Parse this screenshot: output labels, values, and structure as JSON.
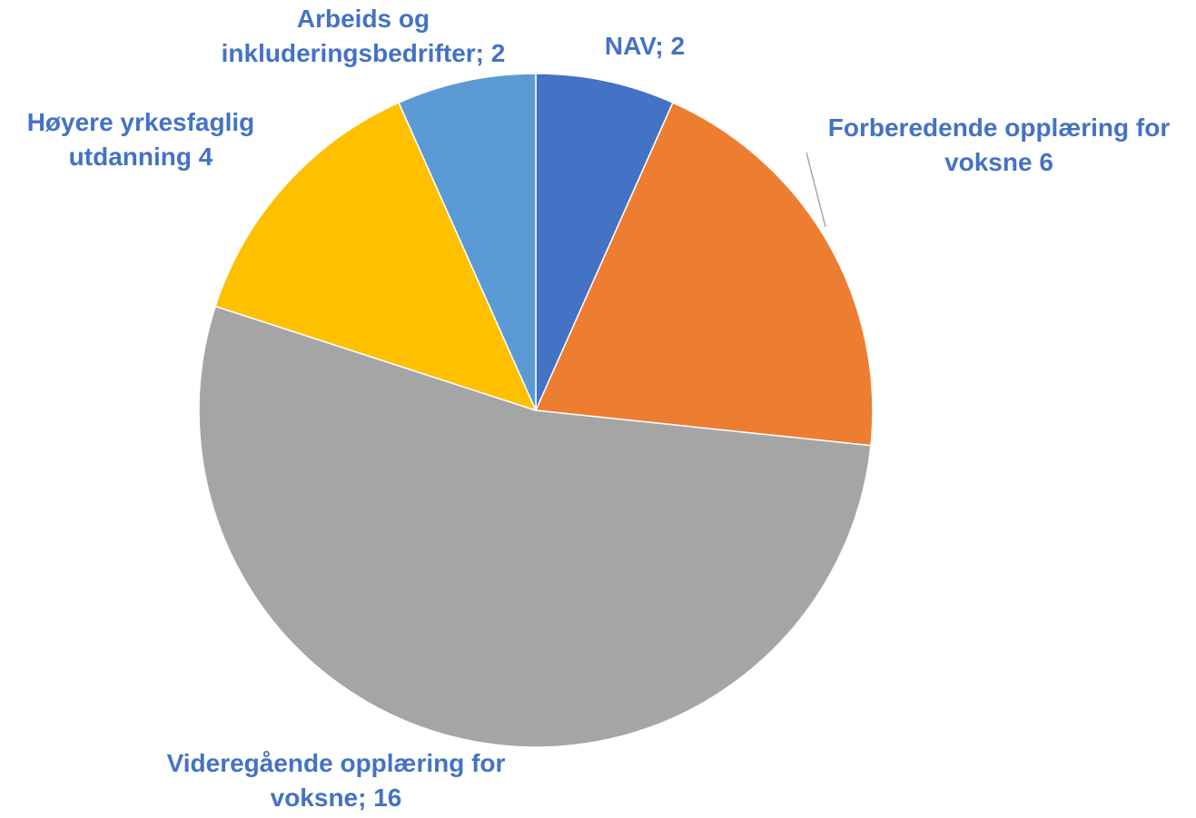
{
  "chart_data": {
    "type": "pie",
    "title": "",
    "slices": [
      {
        "name": "NAV",
        "value": 2,
        "color": "#4472c4",
        "label_lines": [
          "NAV; 2"
        ]
      },
      {
        "name": "Forberedende opplæring for voksne",
        "value": 6,
        "color": "#ed7d31",
        "label_lines": [
          "Forberedende opplæring for",
          "voksne 6"
        ]
      },
      {
        "name": "Videregående opplæring for voksne",
        "value": 16,
        "color": "#a5a5a5",
        "label_lines": [
          "Videregående opplæring for",
          "voksne; 16"
        ]
      },
      {
        "name": "Høyere yrkesfaglig utdanning",
        "value": 4,
        "color": "#ffc000",
        "label_lines": [
          "Høyere yrkesfaglig",
          "utdanning 4"
        ]
      },
      {
        "name": "Arbeids og inkluderingsbedrifter",
        "value": 2,
        "color": "#5b9bd5",
        "label_lines": [
          "Arbeids og",
          "inkluderingsbedrifter; 2"
        ]
      }
    ],
    "start": "12 o'clock",
    "direction": "clockwise",
    "label_color": "#4472c4",
    "legend": "none"
  }
}
